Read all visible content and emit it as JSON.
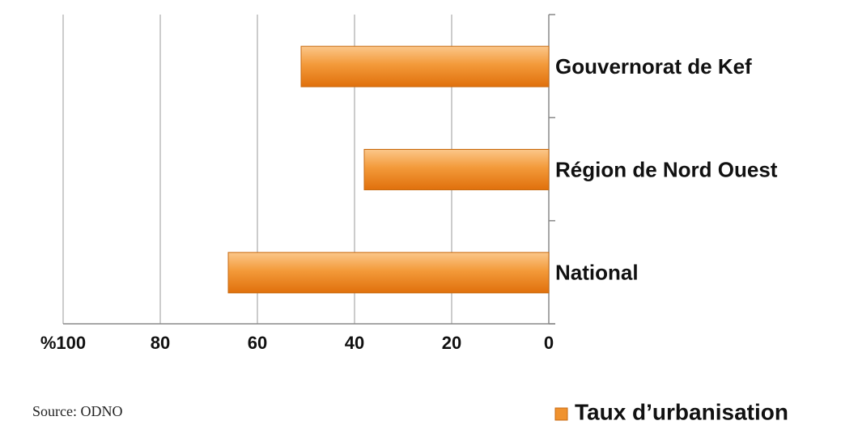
{
  "chart_data": {
    "type": "bar",
    "orientation": "horizontal",
    "categories": [
      "Gouvernorat de Kef",
      "Région de Nord Ouest",
      "National"
    ],
    "series": [
      {
        "name": "Taux d’urbanisation",
        "color": "#f0922e",
        "values": [
          51,
          38,
          66
        ]
      }
    ],
    "xlim": [
      100,
      0
    ],
    "xticks": [
      {
        "value": 100,
        "label": "%100"
      },
      80,
      60,
      40,
      20,
      0
    ],
    "grid": true,
    "legend": "bottom-right",
    "annotations": [
      "Source: ODNO"
    ]
  }
}
